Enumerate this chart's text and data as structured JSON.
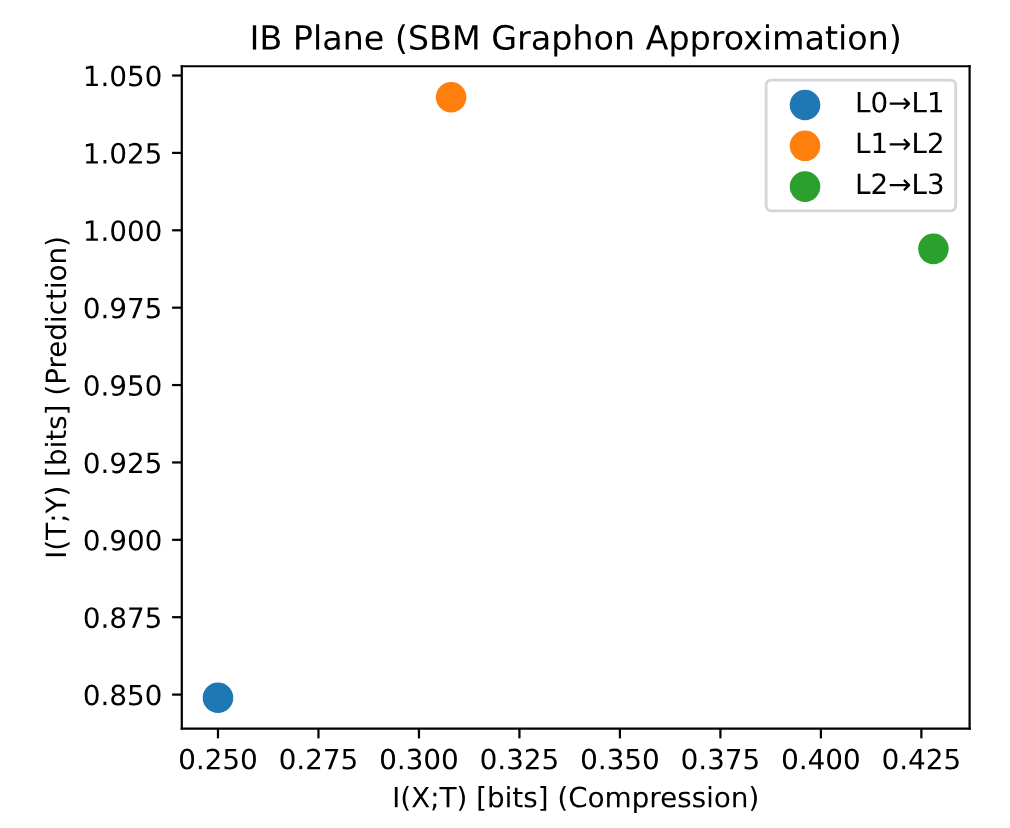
{
  "chart_data": {
    "type": "scatter",
    "title": "IB Plane (SBM Graphon Approximation)",
    "xlabel": "I(X;T) [bits] (Compression)",
    "ylabel": "I(T;Y) [bits] (Prediction)",
    "series": [
      {
        "name": "L0→L1",
        "color": "#1f77b4",
        "x": [
          0.25
        ],
        "values": [
          0.849
        ]
      },
      {
        "name": "L1→L2",
        "color": "#ff7f0e",
        "x": [
          0.308
        ],
        "values": [
          1.043
        ]
      },
      {
        "name": "L2→L3",
        "color": "#2ca02c",
        "x": [
          0.428
        ],
        "values": [
          0.994
        ]
      }
    ],
    "xlim": [
      0.241,
      0.437
    ],
    "ylim": [
      0.839,
      1.053
    ],
    "xticks": [
      {
        "value": 0.25,
        "label": "0.250"
      },
      {
        "value": 0.275,
        "label": "0.275"
      },
      {
        "value": 0.3,
        "label": "0.300"
      },
      {
        "value": 0.325,
        "label": "0.325"
      },
      {
        "value": 0.35,
        "label": "0.350"
      },
      {
        "value": 0.375,
        "label": "0.375"
      },
      {
        "value": 0.4,
        "label": "0.400"
      },
      {
        "value": 0.425,
        "label": "0.425"
      }
    ],
    "yticks": [
      {
        "value": 0.85,
        "label": "0.850"
      },
      {
        "value": 0.875,
        "label": "0.875"
      },
      {
        "value": 0.9,
        "label": "0.900"
      },
      {
        "value": 0.925,
        "label": "0.925"
      },
      {
        "value": 0.95,
        "label": "0.950"
      },
      {
        "value": 0.975,
        "label": "0.975"
      },
      {
        "value": 1.0,
        "label": "1.000"
      },
      {
        "value": 1.025,
        "label": "1.025"
      },
      {
        "value": 1.05,
        "label": "1.050"
      }
    ],
    "legend": "top right",
    "marker": "circle",
    "grid": false
  }
}
